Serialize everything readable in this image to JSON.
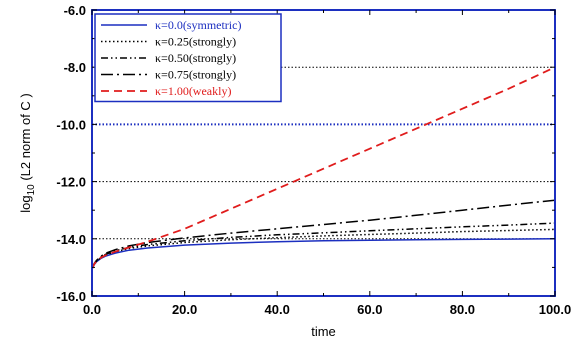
{
  "chart_data": {
    "type": "line",
    "title": "",
    "xlabel": "time",
    "ylabel": {
      "prefix": "log",
      "sub": "10",
      "suffix": " (L2 norm of C )"
    },
    "xlim": [
      0,
      100
    ],
    "ylim": [
      -16,
      -6
    ],
    "xticks": [
      0,
      20,
      40,
      60,
      80,
      100
    ],
    "xtick_labels": [
      "0.0",
      "20.0",
      "40.0",
      "60.0",
      "80.0",
      "100.0"
    ],
    "yticks": [
      -16,
      -14,
      -12,
      -10,
      -8,
      -6
    ],
    "ytick_labels": [
      "-16.0",
      "-14.0",
      "-12.0",
      "-10.0",
      "-8.0",
      "-6.0"
    ],
    "grid": "horizontal dotted",
    "legend_position": "top-left",
    "series": [
      {
        "name": "κ=0.0(symmetric)",
        "color": "#1c2fc0",
        "dash": "solid",
        "x": [
          0,
          0.5,
          1,
          2,
          3,
          5,
          8,
          12,
          20,
          30,
          40,
          50,
          60,
          70,
          80,
          90,
          100
        ],
        "y": [
          -15.05,
          -14.9,
          -14.8,
          -14.68,
          -14.6,
          -14.5,
          -14.4,
          -14.32,
          -14.22,
          -14.15,
          -14.1,
          -14.07,
          -14.05,
          -14.03,
          -14.02,
          -14.01,
          -14.0
        ]
      },
      {
        "name": "κ=0.25(strongly)",
        "color": "#000000",
        "dash": "dotted",
        "x": [
          0,
          0.5,
          1,
          2,
          3,
          5,
          8,
          12,
          20,
          30,
          40,
          50,
          60,
          70,
          80,
          90,
          100
        ],
        "y": [
          -15.05,
          -14.88,
          -14.78,
          -14.65,
          -14.56,
          -14.45,
          -14.34,
          -14.25,
          -14.13,
          -14.03,
          -13.96,
          -13.9,
          -13.85,
          -13.8,
          -13.75,
          -13.71,
          -13.67
        ]
      },
      {
        "name": "κ=0.50(strongly)",
        "color": "#000000",
        "dash": "dashdotdot",
        "x": [
          0,
          0.5,
          1,
          2,
          3,
          5,
          8,
          12,
          20,
          30,
          40,
          50,
          60,
          70,
          80,
          90,
          100
        ],
        "y": [
          -15.05,
          -14.87,
          -14.77,
          -14.63,
          -14.54,
          -14.42,
          -14.3,
          -14.2,
          -14.07,
          -13.95,
          -13.86,
          -13.79,
          -13.72,
          -13.65,
          -13.58,
          -13.52,
          -13.45
        ]
      },
      {
        "name": "κ=0.75(strongly)",
        "color": "#000000",
        "dash": "dashdot",
        "x": [
          0,
          0.5,
          1,
          2,
          3,
          5,
          8,
          12,
          20,
          30,
          40,
          50,
          60,
          70,
          80,
          90,
          100
        ],
        "y": [
          -15.05,
          -14.86,
          -14.75,
          -14.6,
          -14.5,
          -14.38,
          -14.25,
          -14.13,
          -13.97,
          -13.8,
          -13.65,
          -13.5,
          -13.35,
          -13.18,
          -13.0,
          -12.82,
          -12.65
        ]
      },
      {
        "name": "κ=1.00(weakly)",
        "color": "#e01c1c",
        "dash": "dashed",
        "x": [
          0,
          0.5,
          1,
          2,
          3,
          5,
          8,
          12,
          20,
          30,
          40,
          50,
          60,
          70,
          80,
          90,
          100
        ],
        "y": [
          -15.05,
          -14.88,
          -14.78,
          -14.65,
          -14.57,
          -14.45,
          -14.3,
          -14.1,
          -13.65,
          -12.95,
          -12.25,
          -11.55,
          -10.85,
          -10.15,
          -9.45,
          -8.75,
          -8.0
        ]
      }
    ]
  }
}
